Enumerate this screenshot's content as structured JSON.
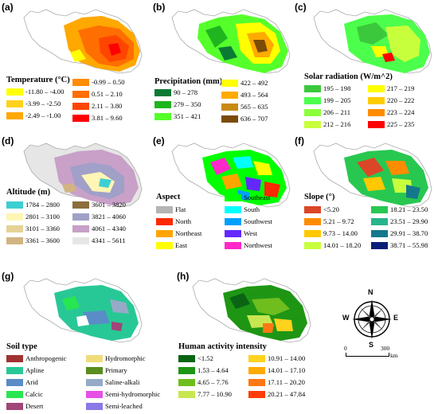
{
  "panels": [
    {
      "label": "(a)",
      "title": "Temperature (°C)",
      "legend": [
        {
          "text": "-11.80 – -4.00",
          "color": "#ffff00"
        },
        {
          "text": "-3.99 – -2.50",
          "color": "#ffd21e"
        },
        {
          "text": "-2.49 – -1.00",
          "color": "#ffa800"
        },
        {
          "text": "-0.99 – 0.50",
          "color": "#ff8c00"
        },
        {
          "text": "0.51 – 2.10",
          "color": "#ff6e00"
        },
        {
          "text": "2.11 – 3.80",
          "color": "#ff4500"
        },
        {
          "text": "3.81 – 9.60",
          "color": "#ff0000"
        }
      ]
    },
    {
      "label": "(b)",
      "title": "Precipitation (mm)",
      "legend": [
        {
          "text": "90 – 278",
          "color": "#0a7a35"
        },
        {
          "text": "279 – 350",
          "color": "#1fb51f"
        },
        {
          "text": "351 – 421",
          "color": "#55ff2a"
        },
        {
          "text": "422 – 492",
          "color": "#ffff00"
        },
        {
          "text": "493 – 564",
          "color": "#ffaa00"
        },
        {
          "text": "565 – 635",
          "color": "#c98a14"
        },
        {
          "text": "636 – 707",
          "color": "#7a4b08"
        }
      ]
    },
    {
      "label": "(c)",
      "title": "Solar radiation (W/m^2)",
      "legend": [
        {
          "text": "195 – 198",
          "color": "#3cc83c"
        },
        {
          "text": "199 – 205",
          "color": "#4cff4c"
        },
        {
          "text": "206 – 211",
          "color": "#8cff3c"
        },
        {
          "text": "212 – 216",
          "color": "#c8ff3c"
        },
        {
          "text": "217 – 219",
          "color": "#ffff00"
        },
        {
          "text": "220 – 222",
          "color": "#ffcc00"
        },
        {
          "text": "223 – 224",
          "color": "#ff8c00"
        },
        {
          "text": "225 – 235",
          "color": "#ff0000"
        }
      ]
    },
    {
      "label": "(d)",
      "title": "Altitude (m)",
      "legend": [
        {
          "text": "1784 – 2800",
          "color": "#3ccfd2"
        },
        {
          "text": "2801 – 3100",
          "color": "#fff5b4"
        },
        {
          "text": "3101 – 3360",
          "color": "#e6d296"
        },
        {
          "text": "3361 – 3600",
          "color": "#d2b482"
        },
        {
          "text": "3601 – 3820",
          "color": "#8c6e3c"
        },
        {
          "text": "3821 – 4060",
          "color": "#a0a0c8"
        },
        {
          "text": "4061 – 4340",
          "color": "#c8a0c8"
        },
        {
          "text": "4341 – 5611",
          "color": "#e6e6e6"
        }
      ]
    },
    {
      "label": "(e)",
      "title": "Aspect",
      "legend": [
        {
          "text": "Flat",
          "color": "#b4b4b4"
        },
        {
          "text": "North",
          "color": "#ff2800"
        },
        {
          "text": "Northeast",
          "color": "#ffa500"
        },
        {
          "text": "East",
          "color": "#ffff00"
        },
        {
          "text": "Southeast",
          "color": "#00ff00"
        },
        {
          "text": "South",
          "color": "#00ffff"
        },
        {
          "text": "Southwest",
          "color": "#00a0ff"
        },
        {
          "text": "West",
          "color": "#6428ff"
        },
        {
          "text": "Northwest",
          "color": "#ff28c8"
        }
      ]
    },
    {
      "label": "(f)",
      "title": "Slope (°)",
      "legend": [
        {
          "text": "<5.20",
          "color": "#dc4628"
        },
        {
          "text": "5.21 – 9.72",
          "color": "#ff8c00"
        },
        {
          "text": "9.73 – 14.00",
          "color": "#ffc800"
        },
        {
          "text": "14.01 – 18.20",
          "color": "#c8ff3c"
        },
        {
          "text": "18.21 – 23.50",
          "color": "#28c850"
        },
        {
          "text": "23.51 – 29.90",
          "color": "#28b48c"
        },
        {
          "text": "29.91 – 38.70",
          "color": "#14788c"
        },
        {
          "text": "38.71 – 55.98",
          "color": "#0a1e78"
        }
      ]
    },
    {
      "label": "(g)",
      "title": "Soil type",
      "legend": [
        {
          "text": "Anthropogenic",
          "color": "#a03232"
        },
        {
          "text": "Apline",
          "color": "#28c896"
        },
        {
          "text": "Arid",
          "color": "#5a8cc8"
        },
        {
          "text": "Calcic",
          "color": "#28e650"
        },
        {
          "text": "Desert",
          "color": "#a04678"
        },
        {
          "text": "Hydromorphic",
          "color": "#f0dc78"
        },
        {
          "text": "Primary",
          "color": "#5a8c1e"
        },
        {
          "text": "Saline-alkali",
          "color": "#96aac8"
        },
        {
          "text": "Semi-hydromorphic",
          "color": "#e650e6"
        },
        {
          "text": "Semi-leached",
          "color": "#8c78e6"
        }
      ]
    },
    {
      "label": "(h)",
      "title": "Human activity intensity",
      "legend": [
        {
          "text": "<1.52",
          "color": "#0a6414"
        },
        {
          "text": "1.53 – 4.64",
          "color": "#1e9614"
        },
        {
          "text": "4.65 – 7.76",
          "color": "#6ebe1e"
        },
        {
          "text": "7.77 – 10.90",
          "color": "#c8e650"
        },
        {
          "text": "10.91 – 14.00",
          "color": "#ffd21e"
        },
        {
          "text": "14.01 – 17.10",
          "color": "#ffaa00"
        },
        {
          "text": "17.11 – 20.20",
          "color": "#ff7814"
        },
        {
          "text": "20.21 – 47.84",
          "color": "#ff3c0a"
        }
      ]
    }
  ],
  "compass": {
    "n": "N",
    "s": "S",
    "e": "E",
    "w": "W"
  },
  "scalebar": {
    "start": "0",
    "end": "300",
    "unit": "km"
  }
}
